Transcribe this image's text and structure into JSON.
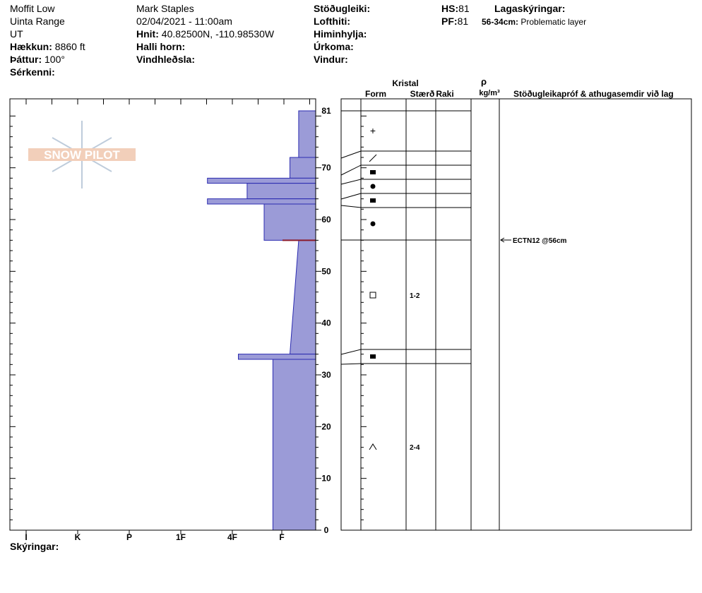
{
  "header": {
    "col1": {
      "location": "Moffit Low",
      "range": "Uinta Range",
      "state": "UT",
      "elevation_label": "Hækkun:",
      "elevation_value": "8860 ft",
      "aspect_label": "Þáttur:",
      "aspect_value": "100°",
      "features_label": "Sérkenni:"
    },
    "col2": {
      "observer": "Mark Staples",
      "datetime": "02/04/2021 - 11:00am",
      "coords_label": "Hnit:",
      "coords_value": "40.82500N, -110.98530W",
      "slope_label": "Halli horn:",
      "wind_loading_label": "Vindhleðsla:"
    },
    "col3": {
      "stability_label": "Stöðugleiki:",
      "air_temp_label": "Lofthiti:",
      "sky_label": "Himinhylja:",
      "precip_label": "Úrkoma:",
      "wind_label": "Vindur:"
    },
    "col4": {
      "hs_label": "HS:",
      "hs_value": "81",
      "pf_label": "PF:",
      "pf_value": "81"
    },
    "col5": {
      "layer_notes_label": "Lagaskýringar:",
      "layer_note_range": "56-34cm:",
      "layer_note_text": "Problematic layer"
    }
  },
  "watermark": {
    "text": "SNOW PILOT"
  },
  "footer": {
    "notes_label": "Skýringar:"
  },
  "table": {
    "kristal_label": "Kristal",
    "form_label": "Form",
    "size_label": "Stærð",
    "moisture_label": "Raki",
    "rho_label": "ρ",
    "density_unit_label": "kg/m³",
    "tests_label": "Stöðugleikapróf & athugasemdir við lag"
  },
  "colors": {
    "layer_fill": "#9b9bd7",
    "layer_edge": "#2b2bb0",
    "weak_layer": "#8b1a2a"
  },
  "chart_data": {
    "type": "bar",
    "title": "",
    "ylabel": "",
    "xlabel": "",
    "y_range": [
      0,
      81
    ],
    "y_ticks": [
      0,
      10,
      20,
      30,
      40,
      50,
      60,
      70,
      81
    ],
    "hardness_scale": [
      "I",
      "K",
      "P",
      "1F",
      "4F",
      "F"
    ],
    "hardness_order_note": "reversed hand-hardness axis",
    "layers": [
      {
        "top": 81,
        "bottom": 72,
        "hardness": 0.33,
        "form": "+",
        "size": "",
        "moisture": ""
      },
      {
        "top": 72,
        "bottom": 68,
        "hardness": 0.5,
        "form": "/",
        "size": "",
        "moisture": ""
      },
      {
        "top": 68,
        "bottom": 67,
        "hardness": 2.1,
        "form": "■",
        "size": "",
        "moisture": ""
      },
      {
        "top": 67,
        "bottom": 64,
        "hardness": 1.33,
        "form": "●",
        "size": "",
        "moisture": ""
      },
      {
        "top": 64,
        "bottom": 63,
        "hardness": 2.1,
        "form": "■",
        "size": "",
        "moisture": ""
      },
      {
        "top": 63,
        "bottom": 56,
        "hardness": 1.0,
        "form": "●",
        "size": "",
        "moisture": ""
      },
      {
        "top": 56,
        "bottom": 34,
        "hardness_top": 0.33,
        "hardness_bottom": 0.5,
        "form": "□",
        "size": "1-2",
        "moisture": ""
      },
      {
        "top": 34,
        "bottom": 33,
        "hardness": 1.5,
        "form": "■",
        "size": "",
        "moisture": ""
      },
      {
        "top": 33,
        "bottom": 0,
        "hardness": 0.83,
        "form": "^",
        "size": "2-4",
        "moisture": ""
      }
    ],
    "weak_layer_depth": 56,
    "tests": [
      {
        "depth": 56,
        "result": "ECTN12 @56cm"
      }
    ]
  }
}
